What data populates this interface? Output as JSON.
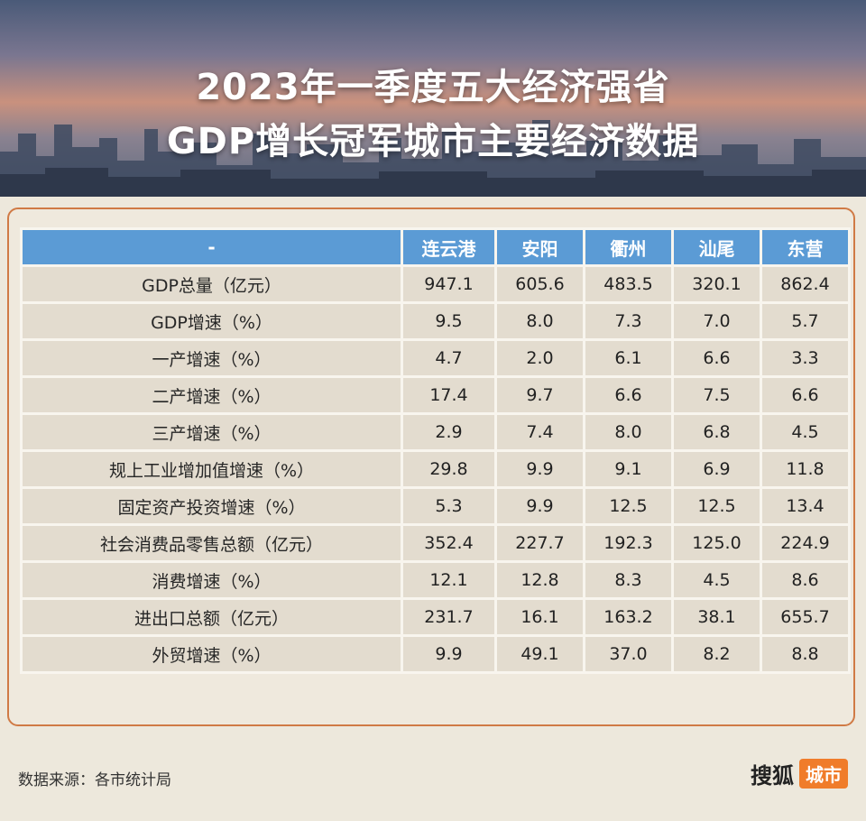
{
  "header": {
    "title_line1": "2023年一季度五大经济强省",
    "title_line2": "GDP增长冠军城市主要经济数据"
  },
  "table": {
    "corner": "-",
    "columns": [
      "连云港",
      "安阳",
      "衢州",
      "汕尾",
      "东营"
    ],
    "rows": [
      {
        "label": "GDP总量（亿元）",
        "values": [
          "947.1",
          "605.6",
          "483.5",
          "320.1",
          "862.4"
        ]
      },
      {
        "label": "GDP增速（%）",
        "values": [
          "9.5",
          "8.0",
          "7.3",
          "7.0",
          "5.7"
        ]
      },
      {
        "label": "一产增速（%）",
        "values": [
          "4.7",
          "2.0",
          "6.1",
          "6.6",
          "3.3"
        ]
      },
      {
        "label": "二产增速（%）",
        "values": [
          "17.4",
          "9.7",
          "6.6",
          "7.5",
          "6.6"
        ]
      },
      {
        "label": "三产增速（%）",
        "values": [
          "2.9",
          "7.4",
          "8.0",
          "6.8",
          "4.5"
        ]
      },
      {
        "label": "规上工业增加值增速（%）",
        "values": [
          "29.8",
          "9.9",
          "9.1",
          "6.9",
          "11.8"
        ]
      },
      {
        "label": "固定资产投资增速（%）",
        "values": [
          "5.3",
          "9.9",
          "12.5",
          "12.5",
          "13.4"
        ]
      },
      {
        "label": "社会消费品零售总额（亿元）",
        "values": [
          "352.4",
          "227.7",
          "192.3",
          "125.0",
          "224.9"
        ]
      },
      {
        "label": "消费增速（%）",
        "values": [
          "12.1",
          "12.8",
          "8.3",
          "4.5",
          "8.6"
        ]
      },
      {
        "label": "进出口总额（亿元）",
        "values": [
          "231.7",
          "16.1",
          "163.2",
          "38.1",
          "655.7"
        ]
      },
      {
        "label": "外贸增速（%）",
        "values": [
          "9.9",
          "49.1",
          "37.0",
          "8.2",
          "8.8"
        ]
      }
    ]
  },
  "footer": {
    "source": "数据来源：各市统计局",
    "logo_sohu": "搜狐",
    "logo_city": "城市"
  },
  "colors": {
    "header_blue": "#5b9bd5",
    "border_orange": "#d07a45",
    "logo_orange": "#f07c2a"
  }
}
